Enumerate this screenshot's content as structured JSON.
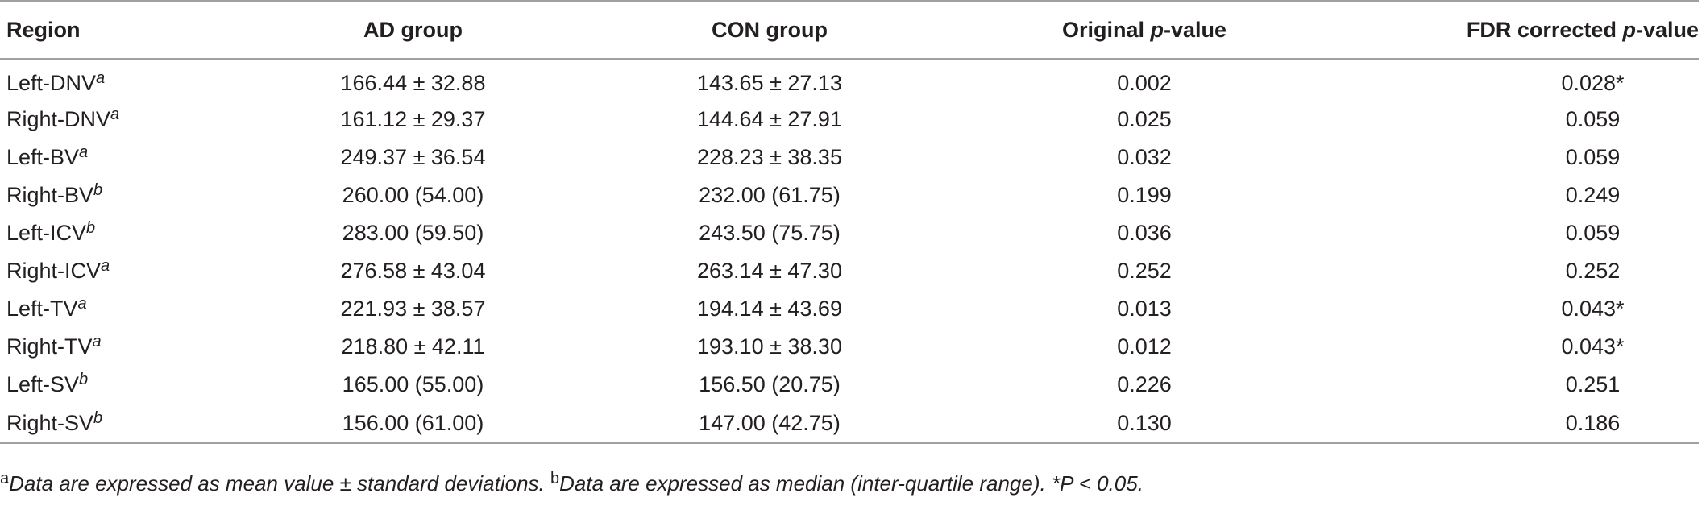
{
  "table": {
    "headers": {
      "region": "Region",
      "ad": "AD group",
      "con": "CON group",
      "orig_prefix": "Original ",
      "orig_p": "p",
      "orig_suffix": "-value",
      "fdr_prefix": "FDR corrected ",
      "fdr_p": "p",
      "fdr_suffix": "-value"
    },
    "rows": [
      {
        "region": "Left-DNV",
        "sup": "a",
        "ad": "166.44 ± 32.88",
        "con": "143.65 ± 27.13",
        "orig": "0.002",
        "fdr": "0.028*"
      },
      {
        "region": "Right-DNV",
        "sup": "a",
        "ad": "161.12 ± 29.37",
        "con": "144.64 ± 27.91",
        "orig": "0.025",
        "fdr": "0.059"
      },
      {
        "region": "Left-BV",
        "sup": "a",
        "ad": "249.37 ± 36.54",
        "con": "228.23 ± 38.35",
        "orig": "0.032",
        "fdr": "0.059"
      },
      {
        "region": "Right-BV",
        "sup": "b",
        "ad": "260.00 (54.00)",
        "con": "232.00 (61.75)",
        "orig": "0.199",
        "fdr": "0.249"
      },
      {
        "region": "Left-ICV",
        "sup": "b",
        "ad": "283.00 (59.50)",
        "con": "243.50 (75.75)",
        "orig": "0.036",
        "fdr": "0.059"
      },
      {
        "region": "Right-ICV",
        "sup": "a",
        "ad": "276.58 ± 43.04",
        "con": "263.14 ± 47.30",
        "orig": "0.252",
        "fdr": "0.252"
      },
      {
        "region": "Left-TV",
        "sup": "a",
        "ad": "221.93 ± 38.57",
        "con": "194.14 ± 43.69",
        "orig": "0.013",
        "fdr": "0.043*"
      },
      {
        "region": "Right-TV",
        "sup": "a",
        "ad": "218.80 ± 42.11",
        "con": "193.10 ± 38.30",
        "orig": "0.012",
        "fdr": "0.043*"
      },
      {
        "region": "Left-SV",
        "sup": "b",
        "ad": "165.00 (55.00)",
        "con": "156.50 (20.75)",
        "orig": "0.226",
        "fdr": "0.251"
      },
      {
        "region": "Right-SV",
        "sup": "b",
        "ad": "156.00 (61.00)",
        "con": "147.00 (42.75)",
        "orig": "0.130",
        "fdr": "0.186"
      }
    ]
  },
  "footnote": {
    "a_mark": "a",
    "a_text": "Data are expressed as mean value ± standard deviations. ",
    "b_mark": "b",
    "b_text": "Data are expressed as median (inter-quartile range). ",
    "star_text": "*P < 0.05."
  }
}
